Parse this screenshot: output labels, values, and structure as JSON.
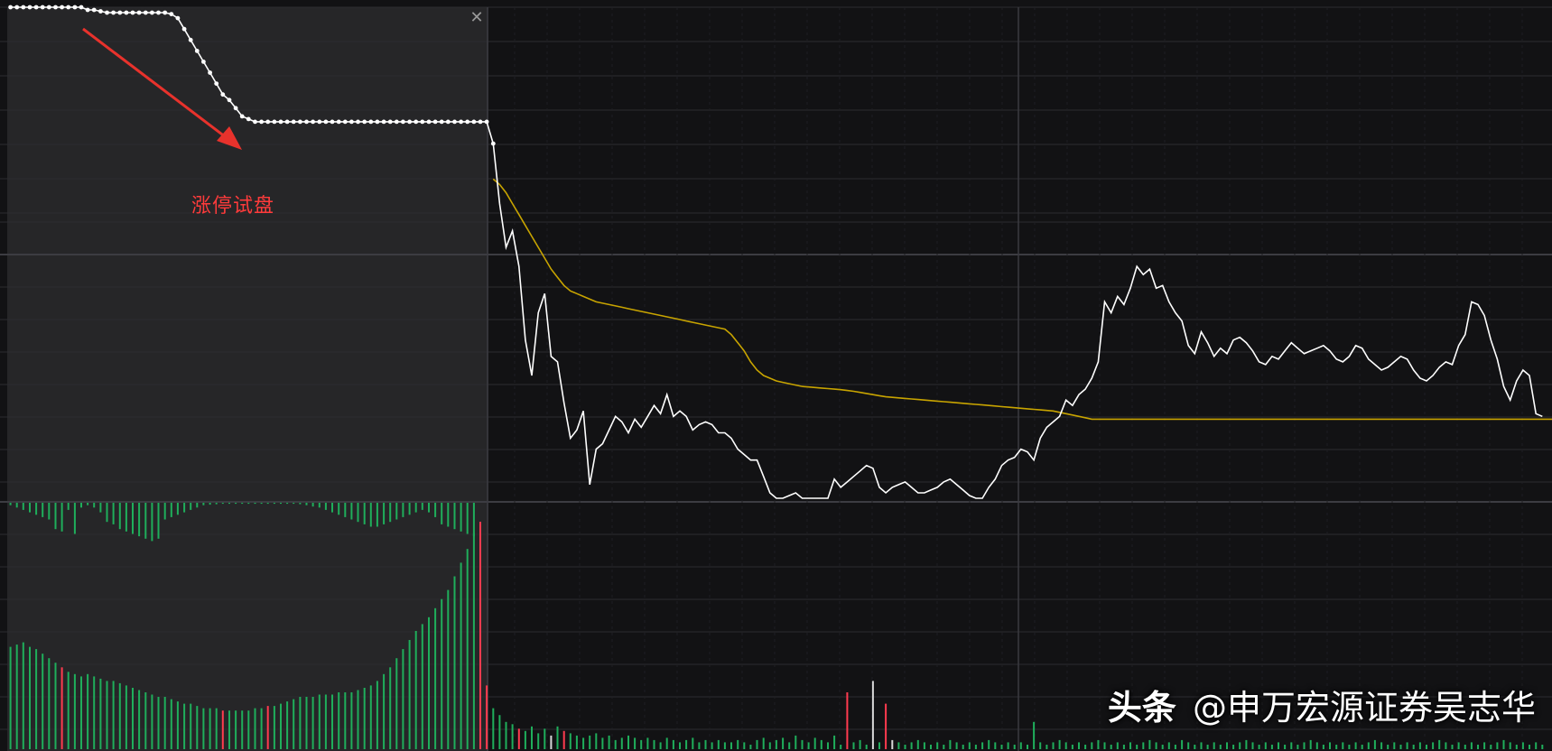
{
  "annotation": {
    "text": "涨停试盘"
  },
  "watermark": {
    "brand": "头条",
    "handle": "@申万宏源证券吴志华"
  },
  "colors": {
    "background": "#121214",
    "panel_highlight": "#262628",
    "grid": "#2c2c30",
    "price_line": "#ffffff",
    "avg_line": "#c8a400",
    "volume_up": "#ff3b4f",
    "volume_down": "#1fae5b",
    "volume_neutral": "#d8d8d8",
    "annotation": "#ff3b3b"
  },
  "chart_data": [
    {
      "type": "line",
      "panel": "price",
      "x_range": [
        0,
        240
      ],
      "y_range": [
        -8,
        10
      ],
      "series": [
        {
          "values": [
            10,
            10,
            10,
            10,
            10,
            10,
            10,
            10,
            10,
            10,
            10,
            10,
            9.9,
            9.9,
            9.85,
            9.8,
            9.8,
            9.8,
            9.8,
            9.8,
            9.8,
            9.8,
            9.8,
            9.8,
            9.8,
            9.75,
            9.6,
            9.2,
            8.8,
            8.4,
            8.0,
            7.6,
            7.2,
            6.8,
            6.6,
            6.3,
            6.0,
            5.9,
            5.8,
            5.8,
            5.8,
            5.8,
            5.8,
            5.8,
            5.8,
            5.8,
            5.8,
            5.8,
            5.8,
            5.8,
            5.8,
            5.8,
            5.8,
            5.8,
            5.8,
            5.8,
            5.8,
            5.8,
            5.8,
            5.8,
            5.8,
            5.8,
            5.8,
            5.8,
            5.8,
            5.8,
            5.8,
            5.8,
            5.8,
            5.8,
            5.8,
            5.8,
            5.8,
            5.8,
            5.8,
            5.0,
            2.8,
            1.2,
            1.8,
            0.5,
            -2.2,
            -3.5,
            -1.2,
            -0.5,
            -2.8,
            -3.0,
            -4.5,
            -5.8,
            -5.5,
            -4.8,
            -7.5,
            -6.2,
            -6.0,
            -5.5,
            -5.0,
            -5.2,
            -5.6,
            -5.1,
            -5.4,
            -5.0,
            -4.6,
            -4.9,
            -4.2,
            -5.0,
            -4.8,
            -5.0,
            -5.5,
            -5.3,
            -5.2,
            -5.3,
            -5.6,
            -5.6,
            -5.8,
            -6.2,
            -6.4,
            -6.6,
            -6.6,
            -7.2,
            -7.8,
            -8.0,
            -8.0,
            -7.9,
            -7.8,
            -8.0,
            -8.0,
            -8.0,
            -8.0,
            -8.0,
            -7.3,
            -7.6,
            -7.4,
            -7.2,
            -7.0,
            -6.8,
            -6.9,
            -7.6,
            -7.8,
            -7.6,
            -7.5,
            -7.4,
            -7.6,
            -7.8,
            -7.8,
            -7.7,
            -7.6,
            -7.4,
            -7.3,
            -7.5,
            -7.7,
            -7.9,
            -8.0,
            -8.0,
            -7.6,
            -7.3,
            -6.8,
            -6.6,
            -6.5,
            -6.2,
            -6.3,
            -6.6,
            -5.8,
            -5.4,
            -5.2,
            -5.0,
            -4.4,
            -4.6,
            -4.2,
            -4.0,
            -3.6,
            -3.0,
            -0.8,
            -1.2,
            -0.6,
            -0.9,
            -0.3,
            0.5,
            0.2,
            0.4,
            -0.3,
            -0.2,
            -0.8,
            -1.2,
            -1.5,
            -2.4,
            -2.7,
            -1.9,
            -2.3,
            -2.8,
            -2.5,
            -2.7,
            -2.2,
            -2.1,
            -2.3,
            -2.6,
            -3.0,
            -3.1,
            -2.8,
            -2.9,
            -2.6,
            -2.3,
            -2.5,
            -2.7,
            -2.6,
            -2.5,
            -2.4,
            -2.6,
            -2.9,
            -3.0,
            -2.8,
            -2.4,
            -2.5,
            -2.9,
            -3.1,
            -3.3,
            -3.2,
            -3.0,
            -2.8,
            -2.9,
            -3.3,
            -3.6,
            -3.7,
            -3.5,
            -3.2,
            -3.0,
            -3.1,
            -2.4,
            -2.0,
            -0.8,
            -0.9,
            -1.3,
            -2.2,
            -2.9,
            -3.9,
            -4.4,
            -3.7,
            -3.3,
            -3.5,
            -4.9,
            -5.0
          ]
        },
        {
          "values": [
            null,
            null,
            null,
            null,
            null,
            null,
            null,
            null,
            null,
            null,
            null,
            null,
            null,
            null,
            null,
            null,
            null,
            null,
            null,
            null,
            null,
            null,
            null,
            null,
            null,
            null,
            null,
            null,
            null,
            null,
            null,
            null,
            null,
            null,
            null,
            null,
            null,
            null,
            null,
            null,
            null,
            null,
            null,
            null,
            null,
            null,
            null,
            null,
            null,
            null,
            null,
            null,
            null,
            null,
            null,
            null,
            null,
            null,
            null,
            null,
            null,
            null,
            null,
            null,
            null,
            null,
            null,
            null,
            null,
            null,
            null,
            null,
            null,
            null,
            null,
            3.7,
            3.5,
            3.2,
            2.8,
            2.4,
            2.0,
            1.6,
            1.2,
            0.8,
            0.4,
            0.1,
            -0.2,
            -0.4,
            -0.5,
            -0.6,
            -0.7,
            -0.8,
            -0.85,
            -0.9,
            -0.95,
            -1.0,
            -1.05,
            -1.1,
            -1.15,
            -1.2,
            -1.25,
            -1.3,
            -1.35,
            -1.4,
            -1.45,
            -1.5,
            -1.55,
            -1.6,
            -1.65,
            -1.7,
            -1.75,
            -1.8,
            -2.0,
            -2.3,
            -2.6,
            -3.0,
            -3.3,
            -3.5,
            -3.6,
            -3.7,
            -3.75,
            -3.8,
            -3.85,
            -3.9,
            -3.92,
            -3.94,
            -3.96,
            -3.98,
            -4.0,
            -4.02,
            -4.05,
            -4.08,
            -4.12,
            -4.16,
            -4.2,
            -4.24,
            -4.28,
            -4.3,
            -4.32,
            -4.34,
            -4.36,
            -4.38,
            -4.4,
            -4.42,
            -4.44,
            -4.46,
            -4.48,
            -4.5,
            -4.52,
            -4.54,
            -4.56,
            -4.58,
            -4.6,
            -4.62,
            -4.64,
            -4.66,
            -4.68,
            -4.7,
            -4.72,
            -4.74,
            -4.76,
            -4.78,
            -4.8,
            -4.85,
            -4.9,
            -4.95,
            -5.0,
            -5.05,
            -5.1,
            -5.1,
            -5.1,
            -5.1,
            -5.1,
            -5.1,
            -5.1,
            -5.1,
            -5.1,
            -5.1,
            -5.1,
            -5.1,
            -5.1,
            -5.1,
            -5.1,
            -5.1,
            -5.1,
            -5.1,
            -5.1,
            -5.1,
            -5.1,
            -5.1,
            -5.1,
            -5.1,
            -5.1,
            -5.1,
            -5.1,
            -5.1,
            -5.1,
            -5.1,
            -5.1,
            -5.1,
            -5.1,
            -5.1,
            -5.1,
            -5.1,
            -5.1,
            -5.1,
            -5.1,
            -5.1,
            -5.1,
            -5.1,
            -5.1,
            -5.1,
            -5.1,
            -5.1,
            -5.1,
            -5.1,
            -5.1,
            -5.1,
            -5.1,
            -5.1,
            -5.1,
            -5.1,
            -5.1,
            -5.1,
            -5.1,
            -5.1,
            -5.1,
            -5.1,
            -5.1,
            -5.1,
            -5.1,
            -5.1,
            -5.1,
            -5.1,
            -5.1,
            -5.1,
            -5.1,
            -5.1,
            -5.1,
            -5.1,
            -5.1,
            -5.1,
            -5.1,
            -5.1,
            -5.1,
            -5.1,
            -5.1,
            -5.1,
            -5.1,
            -5.1,
            -5.1,
            -5.1,
            -5.1,
            -5.1,
            -5.1,
            -5.15,
            -5.2,
            -5.2,
            -5.25,
            -5.3,
            -5.3,
            -5.3
          ]
        }
      ]
    },
    {
      "type": "bar",
      "panel": "indicator",
      "x_range": [
        0,
        240
      ],
      "y_range": [
        -1,
        0
      ],
      "values": [
        -0.05,
        -0.1,
        -0.15,
        -0.2,
        -0.25,
        -0.3,
        -0.35,
        -0.55,
        -0.6,
        -0.15,
        -0.65,
        -0.1,
        -0.05,
        -0.1,
        -0.2,
        -0.4,
        -0.45,
        -0.55,
        -0.6,
        -0.65,
        -0.7,
        -0.75,
        -0.8,
        -0.75,
        -0.35,
        -0.3,
        -0.25,
        -0.2,
        -0.15,
        -0.1,
        -0.05,
        -0.04,
        -0.03,
        -0.02,
        -0.02,
        -0.02,
        -0.02,
        -0.02,
        -0.02,
        -0.02,
        -0.02,
        -0.02,
        -0.02,
        -0.02,
        -0.02,
        -0.03,
        -0.05,
        -0.08,
        -0.1,
        -0.15,
        -0.2,
        -0.25,
        -0.3,
        -0.35,
        -0.4,
        -0.45,
        -0.5,
        -0.5,
        -0.45,
        -0.4,
        -0.35,
        -0.3,
        -0.25,
        -0.2,
        -0.15,
        -0.2,
        -0.3,
        -0.45,
        -0.5,
        -0.55,
        -0.6,
        -0.65,
        -0.7
      ]
    },
    {
      "type": "bar",
      "panel": "volume",
      "x_range": [
        0,
        240
      ],
      "y_range": [
        0,
        100
      ],
      "values": [
        45,
        46,
        47,
        45,
        44,
        42,
        40,
        38,
        36,
        34,
        33,
        32,
        33,
        32,
        31,
        30,
        30,
        29,
        28,
        27,
        26,
        25,
        24,
        23,
        23,
        22,
        21,
        20,
        20,
        19,
        18,
        18,
        18,
        17,
        17,
        17,
        17,
        17,
        18,
        18,
        19,
        19,
        20,
        21,
        22,
        23,
        23,
        23,
        24,
        24,
        24,
        25,
        25,
        25,
        26,
        27,
        28,
        30,
        33,
        36,
        40,
        44,
        48,
        52,
        55,
        58,
        62,
        66,
        70,
        76,
        82,
        88,
        95,
        100,
        28,
        18,
        15,
        12,
        11,
        9,
        8,
        10,
        7,
        9,
        6,
        10,
        8,
        7,
        6,
        5,
        6,
        7,
        5,
        6,
        4,
        5,
        6,
        5,
        4,
        5,
        4,
        3,
        5,
        4,
        3,
        4,
        5,
        3,
        4,
        3,
        4,
        3,
        3,
        4,
        3,
        2,
        4,
        5,
        3,
        4,
        5,
        3,
        6,
        4,
        3,
        5,
        4,
        3,
        6,
        2,
        25,
        3,
        4,
        2,
        30,
        3,
        20,
        4,
        3,
        2,
        3,
        4,
        3,
        2,
        3,
        2,
        4,
        3,
        2,
        3,
        2,
        3,
        4,
        3,
        2,
        3,
        2,
        3,
        2,
        12,
        3,
        2,
        3,
        4,
        3,
        2,
        3,
        2,
        3,
        4,
        3,
        2,
        3,
        2,
        3,
        2,
        3,
        4,
        3,
        2,
        3,
        2,
        4,
        3,
        2,
        3,
        2,
        3,
        2,
        3,
        2,
        3,
        4,
        3,
        2,
        3,
        2,
        3,
        2,
        3,
        2,
        3,
        4,
        3,
        2,
        3,
        2,
        3,
        2,
        3,
        2,
        3,
        4,
        3,
        2,
        3,
        2,
        3,
        2,
        3,
        2,
        3,
        4,
        3,
        2,
        3,
        2,
        3,
        2,
        3,
        2,
        3,
        4,
        3,
        2,
        3,
        2,
        3,
        2
      ],
      "colors": [
        "g",
        "g",
        "g",
        "g",
        "g",
        "g",
        "g",
        "g",
        "r",
        "g",
        "g",
        "g",
        "g",
        "g",
        "g",
        "g",
        "g",
        "g",
        "g",
        "g",
        "g",
        "g",
        "g",
        "g",
        "g",
        "g",
        "g",
        "g",
        "g",
        "g",
        "g",
        "g",
        "g",
        "r",
        "g",
        "g",
        "g",
        "g",
        "g",
        "g",
        "r",
        "g",
        "g",
        "g",
        "g",
        "g",
        "g",
        "g",
        "g",
        "g",
        "g",
        "g",
        "g",
        "g",
        "g",
        "g",
        "g",
        "g",
        "g",
        "g",
        "g",
        "g",
        "g",
        "g",
        "g",
        "g",
        "g",
        "g",
        "g",
        "g",
        "g",
        "g",
        "g",
        "r",
        "r",
        "g",
        "g",
        "g",
        "g",
        "r",
        "g",
        "g",
        "g",
        "g",
        "w",
        "g",
        "r",
        "g",
        "g",
        "g",
        "g",
        "g",
        "g",
        "g",
        "g",
        "g",
        "g",
        "g",
        "g",
        "g",
        "g",
        "g",
        "g",
        "g",
        "g",
        "g",
        "g",
        "g",
        "g",
        "g",
        "g",
        "g",
        "g",
        "g",
        "g",
        "g",
        "g",
        "g",
        "g",
        "g",
        "g",
        "g",
        "g",
        "g",
        "g",
        "g",
        "g",
        "g",
        "g",
        "g",
        "r",
        "g",
        "g",
        "g",
        "w",
        "g",
        "r",
        "w",
        "g",
        "g",
        "g",
        "g",
        "g",
        "g",
        "g",
        "g",
        "g",
        "g",
        "g",
        "g",
        "g",
        "g",
        "g",
        "g",
        "g",
        "g",
        "g",
        "g",
        "g",
        "g",
        "g",
        "g",
        "g",
        "g",
        "g",
        "g",
        "g",
        "g",
        "g",
        "g",
        "g",
        "g",
        "g",
        "g",
        "g",
        "g",
        "g",
        "g",
        "g",
        "g",
        "g",
        "g",
        "g",
        "g",
        "g",
        "g",
        "g",
        "g",
        "g",
        "g",
        "g",
        "g",
        "g",
        "g",
        "g",
        "g",
        "g",
        "g",
        "g",
        "g",
        "g",
        "g",
        "g",
        "g",
        "g",
        "g",
        "g",
        "g",
        "g",
        "g",
        "g",
        "g",
        "g",
        "g",
        "g",
        "g",
        "g",
        "g",
        "g",
        "g",
        "g",
        "g",
        "g",
        "g",
        "g",
        "g",
        "g",
        "g",
        "g",
        "g",
        "g",
        "g",
        "g",
        "g",
        "g",
        "g",
        "g",
        "g",
        "g",
        "g",
        "g",
        "g",
        "g",
        "g",
        "g",
        "g",
        "g",
        "g",
        "g",
        "g",
        "g",
        "g"
      ]
    }
  ]
}
